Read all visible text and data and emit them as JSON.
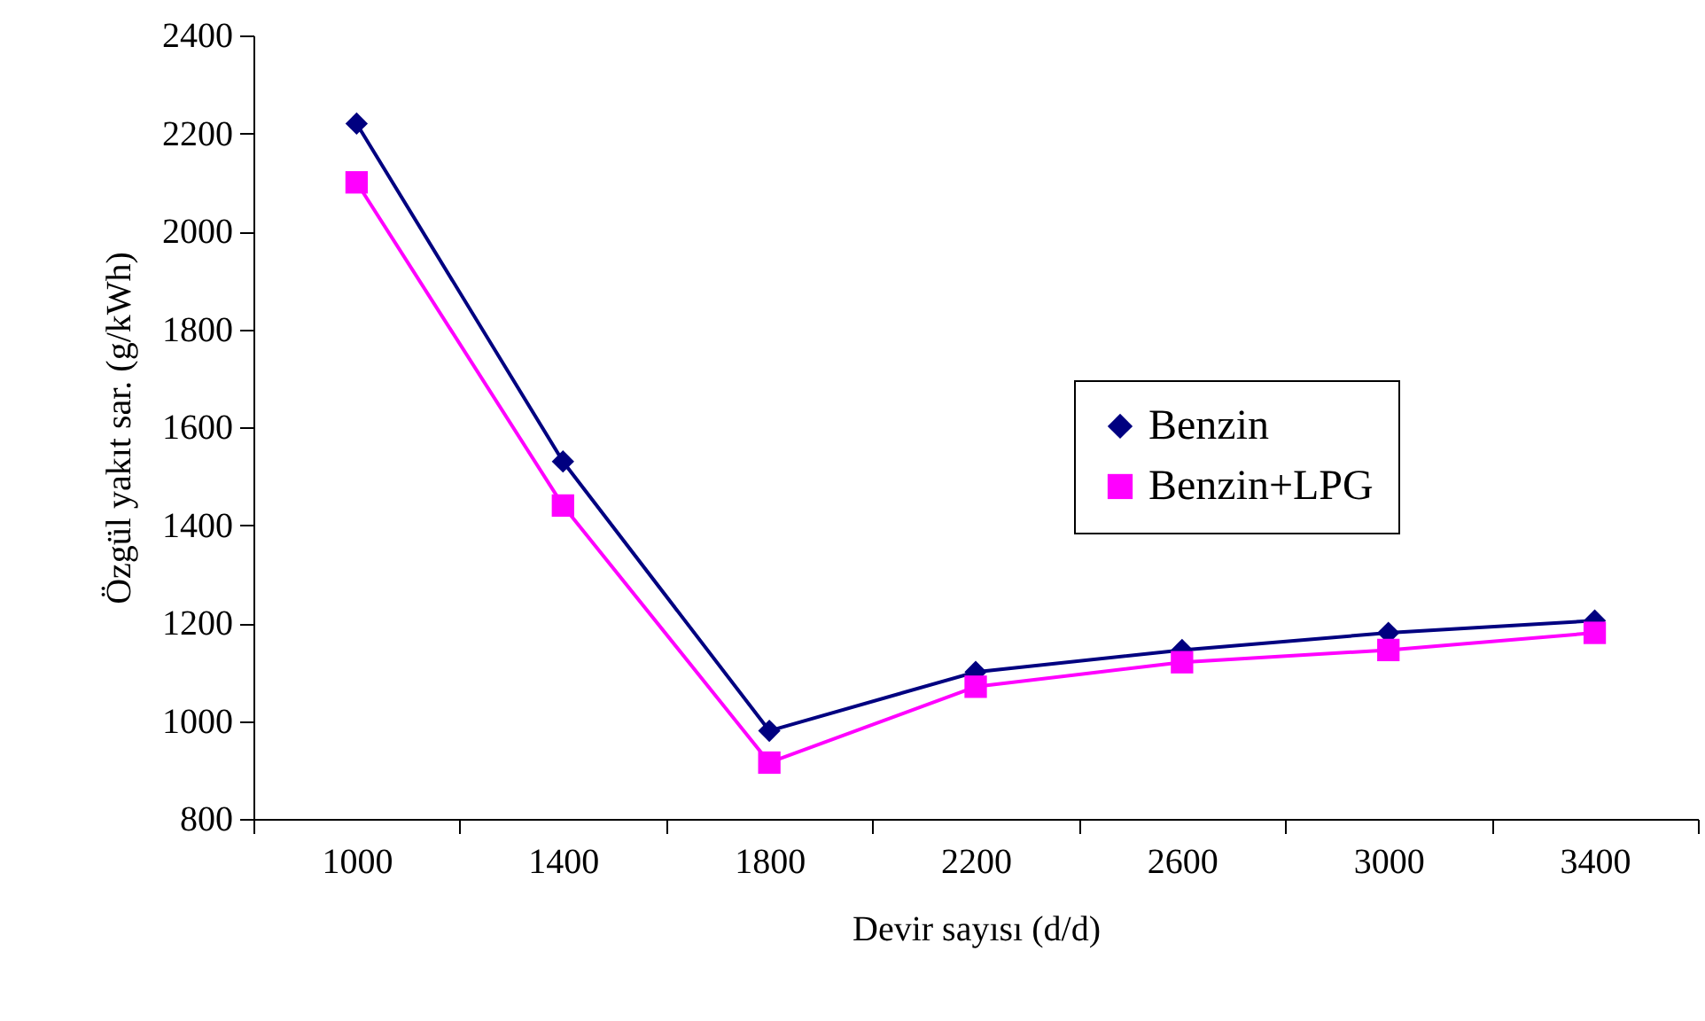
{
  "chart_data": {
    "type": "line",
    "xlabel": "Devir sayısı (d/d)",
    "ylabel": "Özgül yakıt sar. (g/kWh)",
    "categories": [
      "1000",
      "1400",
      "1800",
      "2200",
      "2600",
      "3000",
      "3400"
    ],
    "ylim": [
      800,
      2400
    ],
    "yticks": [
      800,
      1000,
      1200,
      1400,
      1600,
      1800,
      2000,
      2200,
      2400
    ],
    "grid": false,
    "legend": "right",
    "series": [
      {
        "name": "Benzin",
        "color": "#000080",
        "marker": "diamond",
        "values": [
          2220,
          1530,
          980,
          1100,
          1145,
          1180,
          1205
        ]
      },
      {
        "name": "Benzin+LPG",
        "color": "#ff00ff",
        "marker": "square",
        "values": [
          2100,
          1440,
          915,
          1070,
          1120,
          1145,
          1180
        ]
      }
    ]
  }
}
